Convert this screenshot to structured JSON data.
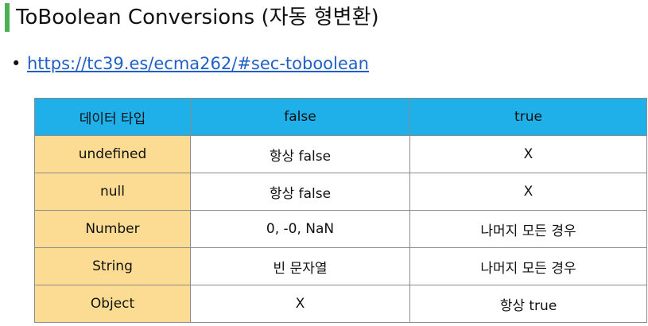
{
  "title": "ToBoolean Conversions (자동 형변환)",
  "link": {
    "bullet": "•",
    "text": "https://tc39.es/ecma262/#sec-toboolean"
  },
  "colors": {
    "accent_bar": "#4bb04f",
    "header_bg": "#1fb0ea",
    "type_col_bg": "#fbdc92",
    "link": "#1f5fc7"
  },
  "table": {
    "headers": [
      "데이터 타입",
      "false",
      "true"
    ],
    "rows": [
      [
        "undefined",
        "항상 false",
        "X"
      ],
      [
        "null",
        "항상 false",
        "X"
      ],
      [
        "Number",
        "0, -0, NaN",
        "나머지 모든 경우"
      ],
      [
        "String",
        "빈 문자열",
        "나머지 모든 경우"
      ],
      [
        "Object",
        "X",
        "항상 true"
      ]
    ]
  }
}
